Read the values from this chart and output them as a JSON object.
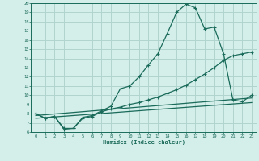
{
  "xlabel": "Humidex (Indice chaleur)",
  "bg_color": "#d4eeea",
  "grid_color": "#b0d4ce",
  "line_color": "#1a6b5a",
  "xlim": [
    -0.5,
    23.5
  ],
  "ylim": [
    6,
    20
  ],
  "x_ticks": [
    0,
    1,
    2,
    3,
    4,
    5,
    6,
    7,
    8,
    9,
    10,
    11,
    12,
    13,
    14,
    15,
    16,
    17,
    18,
    19,
    20,
    21,
    22,
    23
  ],
  "y_ticks": [
    6,
    7,
    8,
    9,
    10,
    11,
    12,
    13,
    14,
    15,
    16,
    17,
    18,
    19,
    20
  ],
  "line1_x": [
    0,
    1,
    2,
    3,
    4,
    5,
    6,
    7,
    8,
    9,
    10,
    11,
    12,
    13,
    14,
    15,
    16,
    17,
    18,
    19,
    20,
    21,
    22,
    23
  ],
  "line1_y": [
    8.0,
    7.5,
    7.7,
    6.3,
    6.4,
    7.6,
    7.8,
    8.3,
    8.8,
    10.7,
    11.0,
    12.0,
    13.3,
    14.5,
    16.7,
    19.0,
    19.9,
    19.5,
    17.2,
    17.4,
    14.5,
    9.5,
    9.3,
    10.0
  ],
  "line2_x": [
    0,
    1,
    2,
    3,
    4,
    5,
    6,
    7,
    8,
    9,
    10,
    11,
    12,
    13,
    14,
    15,
    16,
    17,
    18,
    19,
    20,
    21,
    22,
    23
  ],
  "line2_y": [
    8.0,
    7.5,
    7.7,
    6.4,
    6.4,
    7.5,
    7.7,
    8.2,
    8.5,
    8.7,
    9.0,
    9.2,
    9.5,
    9.8,
    10.2,
    10.6,
    11.1,
    11.7,
    12.3,
    13.0,
    13.8,
    14.3,
    14.5,
    14.7
  ],
  "line3_x": [
    0,
    23
  ],
  "line3_y": [
    7.8,
    9.7
  ],
  "line4_x": [
    0,
    23
  ],
  "line4_y": [
    7.5,
    9.2
  ]
}
